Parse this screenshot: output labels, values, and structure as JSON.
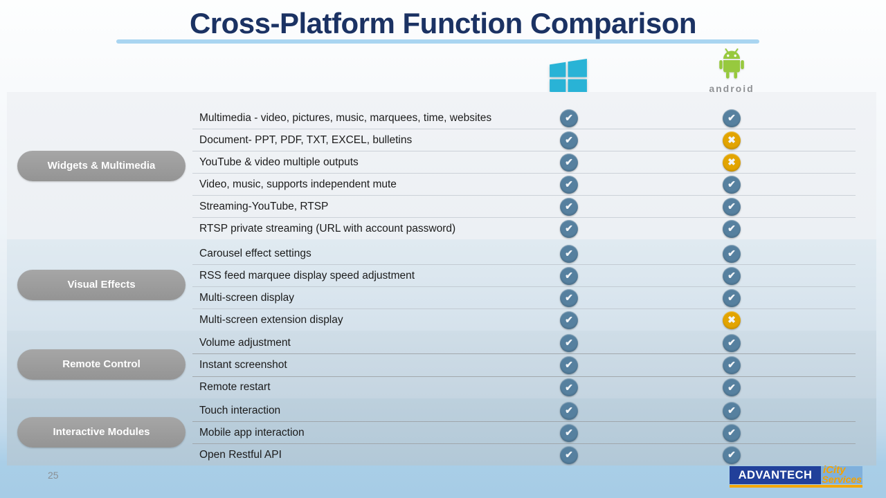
{
  "title": "Cross-Platform Function Comparison",
  "page_number": "25",
  "platforms": [
    {
      "name": "Windows",
      "icon": "windows-logo-icon"
    },
    {
      "name": "Android",
      "icon": "android-robot-icon",
      "wordmark": "android"
    }
  ],
  "sections": [
    {
      "label": "Widgets & Multimedia",
      "rows": [
        {
          "feature": "Multimedia - video, pictures, music, marquees, time, websites",
          "windows": "yes",
          "android": "yes"
        },
        {
          "feature": "Document- PPT, PDF, TXT, EXCEL, bulletins",
          "windows": "yes",
          "android": "no"
        },
        {
          "feature": "YouTube & video multiple outputs",
          "windows": "yes",
          "android": "no"
        },
        {
          "feature": "Video, music, supports independent mute",
          "windows": "yes",
          "android": "yes"
        },
        {
          "feature": "Streaming-YouTube, RTSP",
          "windows": "yes",
          "android": "yes"
        },
        {
          "feature": "RTSP private streaming (URL with account password)",
          "windows": "yes",
          "android": "yes"
        }
      ]
    },
    {
      "label": "Visual Effects",
      "rows": [
        {
          "feature": "Carousel effect settings",
          "windows": "yes",
          "android": "yes"
        },
        {
          "feature": "RSS feed marquee display speed adjustment",
          "windows": "yes",
          "android": "yes"
        },
        {
          "feature": "Multi-screen display",
          "windows": "yes",
          "android": "yes"
        },
        {
          "feature": "Multi-screen extension display",
          "windows": "yes",
          "android": "no"
        }
      ]
    },
    {
      "label": "Remote Control",
      "rows": [
        {
          "feature": "Volume adjustment",
          "windows": "yes",
          "android": "yes"
        },
        {
          "feature": "Instant screenshot",
          "windows": "yes",
          "android": "yes"
        },
        {
          "feature": "Remote restart",
          "windows": "yes",
          "android": "yes"
        }
      ]
    },
    {
      "label": "Interactive Modules",
      "rows": [
        {
          "feature": "Touch interaction",
          "windows": "yes",
          "android": "yes"
        },
        {
          "feature": "Mobile app interaction",
          "windows": "yes",
          "android": "yes"
        },
        {
          "feature": "Open Restful API",
          "windows": "yes",
          "android": "yes"
        }
      ]
    }
  ],
  "marks": {
    "yes_glyph": "✔",
    "no_glyph": "✖",
    "yes_color": "#56809F",
    "no_color": "#E2A400"
  },
  "footer": {
    "brand": "ADVANTECH",
    "sub_brand_line1": "iCity",
    "sub_brand_line2": "Services"
  },
  "colors": {
    "title": "#1B3263",
    "title_underline": "#A9D5F1",
    "windows_cyan": "#29B3D6",
    "android_green": "#97C93E",
    "advantech_blue": "#21409A",
    "brand_orange": "#F5A300"
  }
}
